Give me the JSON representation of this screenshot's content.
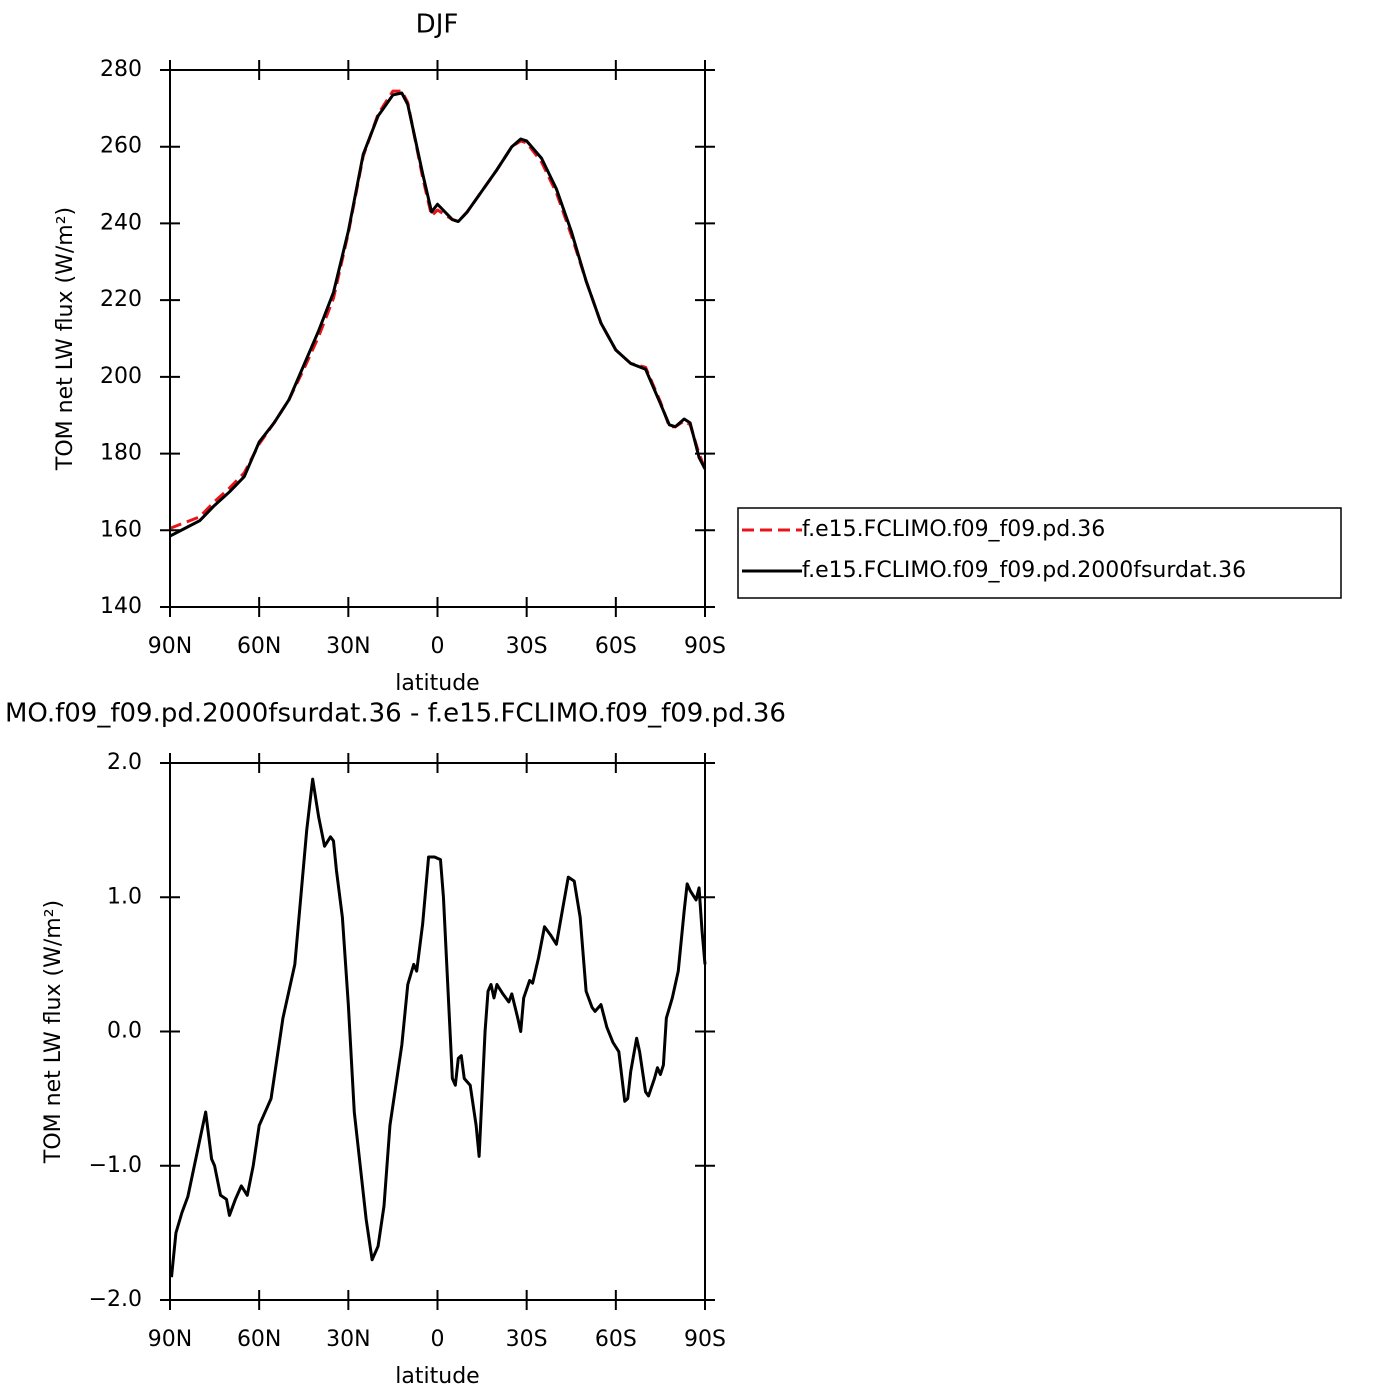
{
  "chart_data": [
    {
      "type": "line",
      "title": "DJF",
      "xlabel": "latitude",
      "ylabel": "TOM net LW flux (W/m²)",
      "x": [
        90,
        85,
        80,
        75,
        70,
        65,
        60,
        55,
        50,
        45,
        40,
        35,
        30,
        25,
        20,
        15,
        12,
        10,
        5,
        2,
        0,
        -5,
        -7,
        -10,
        -15,
        -20,
        -25,
        -28,
        -30,
        -35,
        -40,
        -45,
        -50,
        -55,
        -60,
        -65,
        -70,
        -75,
        -78,
        -80,
        -83,
        -85,
        -88,
        -90
      ],
      "series": [
        {
          "name": "f.e15.FCLIMO.f09_f09.pd.36",
          "color": "#e8141a",
          "dash": true,
          "values": [
            160.5,
            162,
            163.5,
            167.5,
            171,
            175,
            182.5,
            188,
            194,
            202,
            210.5,
            220.5,
            237.5,
            257.5,
            268.5,
            274.5,
            274.5,
            271.5,
            252,
            242,
            243.5,
            241,
            240.5,
            243,
            248.5,
            254,
            260,
            261.5,
            261,
            256,
            248,
            237,
            225,
            214,
            207,
            203.5,
            202.5,
            193.5,
            187,
            187,
            188.5,
            187.5,
            180,
            176
          ]
        },
        {
          "name": "f.e15.FCLIMO.f09_f09.pd.2000fsurdat.36",
          "color": "#000000",
          "dash": false,
          "values": [
            158.5,
            160.5,
            162.5,
            166.5,
            170,
            174,
            183,
            188,
            194,
            203,
            212,
            222,
            238,
            258,
            268,
            273.5,
            274,
            271,
            253,
            243,
            245,
            241,
            240.5,
            243,
            248.5,
            254,
            260,
            262,
            261.5,
            257,
            249,
            238,
            225,
            214,
            207,
            203.5,
            202,
            193,
            187.5,
            187,
            189,
            188,
            179,
            176
          ]
        }
      ],
      "xlim": [
        90,
        -90
      ],
      "xticks": [
        {
          "value": 90,
          "label": "90N"
        },
        {
          "value": 60,
          "label": "60N"
        },
        {
          "value": 30,
          "label": "30N"
        },
        0,
        {
          "value": -30,
          "label": "30S"
        },
        {
          "value": -60,
          "label": "60S"
        },
        {
          "value": -90,
          "label": "90S"
        }
      ],
      "ylim": [
        140,
        280
      ],
      "yticks": [
        140,
        160,
        180,
        200,
        220,
        240,
        260,
        280
      ],
      "legend": "right"
    },
    {
      "type": "line",
      "title": "MO.f09_f09.pd.2000fsurdat.36 - f.e15.FCLIMO.f09_f09.pd.36",
      "xlabel": "latitude",
      "ylabel": "TOM net LW flux (W/m²)",
      "x": [
        89.5,
        88,
        86,
        84,
        80,
        78,
        76,
        75,
        73,
        71,
        70,
        68,
        66,
        64,
        62,
        60,
        58,
        56,
        54,
        52,
        50,
        48,
        46,
        44,
        42,
        40,
        38,
        36,
        35,
        34,
        32,
        30,
        28,
        26,
        24,
        22,
        20,
        18,
        16,
        14,
        12,
        10,
        8,
        7,
        5,
        3,
        1,
        -1,
        -2,
        -4,
        -5,
        -6,
        -7,
        -8,
        -9,
        -11,
        -13,
        -14,
        -16,
        -17,
        -18,
        -19,
        -20,
        -22,
        -24,
        -25,
        -27,
        -28,
        -29,
        -31,
        -32,
        -34,
        -36,
        -38,
        -40,
        -42,
        -44,
        -46,
        -48,
        -50,
        -52,
        -53,
        -55,
        -57,
        -59,
        -61,
        -63,
        -64,
        -65,
        -67,
        -68,
        -70,
        -71,
        -73,
        -74,
        -75,
        -76,
        -77,
        -79,
        -81,
        -83,
        -84,
        -85,
        -87,
        -88,
        -89,
        -90
      ],
      "series": [
        {
          "color": "#000000",
          "dash": false,
          "values": [
            -1.83,
            -1.5,
            -1.35,
            -1.23,
            -0.81,
            -0.6,
            -0.95,
            -1.0,
            -1.22,
            -1.25,
            -1.37,
            -1.25,
            -1.15,
            -1.22,
            -1.0,
            -0.7,
            -0.6,
            -0.5,
            -0.2,
            0.1,
            0.3,
            0.5,
            1.0,
            1.5,
            1.88,
            1.6,
            1.38,
            1.45,
            1.42,
            1.2,
            0.85,
            0.2,
            -0.6,
            -1.0,
            -1.4,
            -1.7,
            -1.6,
            -1.3,
            -0.7,
            -0.4,
            -0.1,
            0.35,
            0.5,
            0.45,
            0.8,
            1.3,
            1.3,
            1.28,
            1.0,
            0.1,
            -0.35,
            -0.4,
            -0.2,
            -0.18,
            -0.35,
            -0.4,
            -0.7,
            -0.93,
            0.0,
            0.3,
            0.35,
            0.25,
            0.35,
            0.28,
            0.22,
            0.28,
            0.1,
            0.0,
            0.25,
            0.38,
            0.36,
            0.55,
            0.78,
            0.72,
            0.65,
            0.9,
            1.15,
            1.12,
            0.85,
            0.3,
            0.18,
            0.15,
            0.2,
            0.03,
            -0.08,
            -0.15,
            -0.52,
            -0.5,
            -0.3,
            -0.05,
            -0.15,
            -0.45,
            -0.48,
            -0.35,
            -0.27,
            -0.32,
            -0.25,
            0.1,
            0.25,
            0.45,
            0.9,
            1.1,
            1.05,
            0.98,
            1.07,
            0.75,
            0.5
          ]
        }
      ],
      "xlim": [
        90,
        -90
      ],
      "xticks": [
        {
          "value": 90,
          "label": "90N"
        },
        {
          "value": 60,
          "label": "60N"
        },
        {
          "value": 30,
          "label": "30N"
        },
        0,
        {
          "value": -30,
          "label": "30S"
        },
        {
          "value": -60,
          "label": "60S"
        },
        {
          "value": -90,
          "label": "90S"
        }
      ],
      "ylim": [
        -2,
        2
      ],
      "yticks": [
        {
          "value": -2,
          "label": "−2.0"
        },
        {
          "value": -1,
          "label": "−1.0"
        },
        {
          "value": 0,
          "label": "0.0"
        },
        {
          "value": 1,
          "label": "1.0"
        },
        {
          "value": 2,
          "label": "2.0"
        }
      ]
    }
  ]
}
